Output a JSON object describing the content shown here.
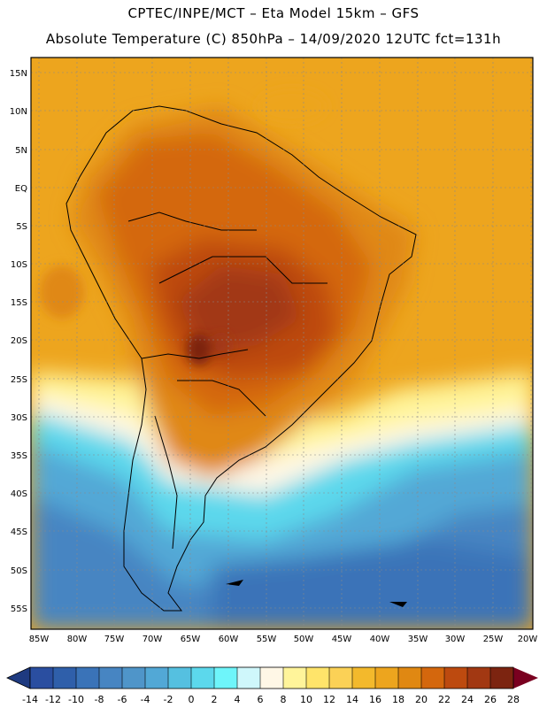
{
  "header": {
    "line1": "CPTEC/INPE/MCT –  Eta Model 15km – GFS",
    "line2": "Absolute Temperature (C) 850hPa – 14/09/2020 12UTC fct=131h"
  },
  "map": {
    "lat_labels": [
      "15N",
      "10N",
      "5N",
      "EQ",
      "5S",
      "10S",
      "15S",
      "20S",
      "25S",
      "30S",
      "35S",
      "40S",
      "45S",
      "50S",
      "55S"
    ],
    "lon_labels": [
      "85W",
      "80W",
      "75W",
      "70W",
      "65W",
      "60W",
      "55W",
      "50W",
      "45W",
      "40W",
      "35W",
      "30W",
      "25W",
      "20W"
    ]
  },
  "colorbar": {
    "labels": [
      "-14",
      "-12",
      "-10",
      "-8",
      "-6",
      "-4",
      "-2",
      "0",
      "2",
      "4",
      "6",
      "8",
      "10",
      "12",
      "14",
      "16",
      "18",
      "20",
      "22",
      "24",
      "26",
      "28"
    ],
    "colors": [
      "#2a4ea0",
      "#2f5faa",
      "#3a73b8",
      "#4785c2",
      "#4f95c9",
      "#52a8d6",
      "#55c0e0",
      "#5cd8ec",
      "#6ef5fa",
      "#cff7fb",
      "#fff7e6",
      "#fff49a",
      "#ffe46a",
      "#fbd156",
      "#f3b92c",
      "#eda51e",
      "#e08812",
      "#d4670d",
      "#bd4a0f",
      "#a23812",
      "#7c2410",
      "#7a0020"
    ]
  }
}
